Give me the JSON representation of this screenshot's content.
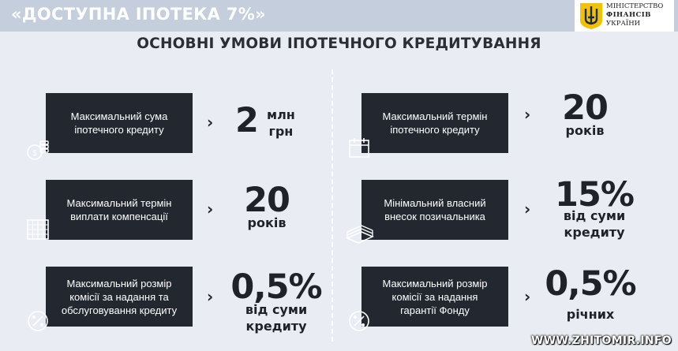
{
  "banner": {
    "title": "«ДОСТУПНА ІПОТЕКА 7%»"
  },
  "logo": {
    "line1": "МІНІСТЕРСТВО",
    "line2": "ФІНАНСІВ",
    "line3": "УКРАЇНИ"
  },
  "heading": "ОСНОВНІ УМОВИ ІПОТЕЧНОГО КРЕДИТУВАННЯ",
  "left": [
    {
      "label_l1": "Максимальний сума",
      "label_l2": "іпотечного кредиту",
      "value": "2",
      "unit_l1": "млн",
      "unit_l2": "грн",
      "icon": "coins-icon"
    },
    {
      "label_l1": "Максимальний термін",
      "label_l2": "виплати компенсації",
      "value": "20",
      "unit_l1": "років",
      "icon": "calendar-grid-icon"
    },
    {
      "label_l1": "Максимальний розмір",
      "label_l2": "комісії за надання та",
      "label_l3": "обслуговування кредиту",
      "value": "0,5%",
      "unit_l1": "від суми",
      "unit_l2": "кредиту",
      "icon": "percent-icon"
    }
  ],
  "right": [
    {
      "label_l1": "Максимальний термін",
      "label_l2": "іпотечного кредиту",
      "value": "20",
      "unit_l1": "років",
      "icon": "calendar-icon"
    },
    {
      "label_l1": "Мінімальний власний",
      "label_l2": "внесок позичальника",
      "value": "15%",
      "unit_l1": "від суми",
      "unit_l2": "кредиту",
      "icon": "cash-stack-icon"
    },
    {
      "label_l1": "Максимальний розмір",
      "label_l2": "комісії за надання",
      "label_l3": "гарантії Фонду",
      "value": "0,5%",
      "unit_l1": "річних",
      "icon": "percent-icon"
    }
  ],
  "chevron": "›",
  "watermark": "WWW.ZHITOMIR.INFO"
}
